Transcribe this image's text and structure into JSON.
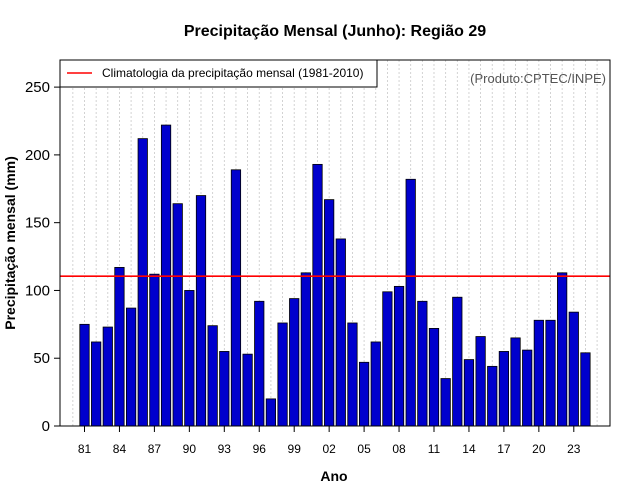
{
  "chart_data": {
    "type": "bar",
    "title": "Precipitação Mensal (Junho): Região 29",
    "xlabel": "Ano",
    "ylabel": "Precipitação mensal (mm)",
    "ylim": [
      0,
      270
    ],
    "yticks": [
      0,
      50,
      100,
      150,
      200,
      250
    ],
    "grid": "vertical dotted",
    "categories": [
      "1981",
      "1982",
      "1983",
      "1984",
      "1985",
      "1986",
      "1987",
      "1988",
      "1989",
      "1990",
      "1991",
      "1992",
      "1993",
      "1994",
      "1995",
      "1996",
      "1997",
      "1998",
      "1999",
      "2000",
      "2001",
      "2002",
      "2003",
      "2004",
      "2005",
      "2006",
      "2007",
      "2008",
      "2009",
      "2010",
      "2011",
      "2012",
      "2013",
      "2014",
      "2015",
      "2016",
      "2017",
      "2018",
      "2019",
      "2020",
      "2021",
      "2022",
      "2023",
      "2024"
    ],
    "values": [
      75,
      62,
      73,
      117,
      87,
      212,
      112,
      222,
      164,
      100,
      170,
      74,
      55,
      189,
      53,
      92,
      20,
      76,
      94,
      113,
      193,
      167,
      138,
      76,
      47,
      62,
      99,
      103,
      182,
      92,
      72,
      35,
      95,
      49,
      66,
      44,
      55,
      65,
      56,
      78,
      78,
      113,
      84,
      54
    ],
    "xtick_labels": [
      "81",
      "84",
      "87",
      "90",
      "93",
      "96",
      "99",
      "02",
      "05",
      "08",
      "11",
      "14",
      "17",
      "20",
      "23"
    ],
    "bar_color": "#0000cd",
    "reference_line": {
      "label": "Climatologia da precipitação mensal (1981-2010)",
      "value": 110.5,
      "color": "#ff0000"
    },
    "legend_position": "top-left",
    "credit": "(Produto:CPTEC/INPE)"
  }
}
